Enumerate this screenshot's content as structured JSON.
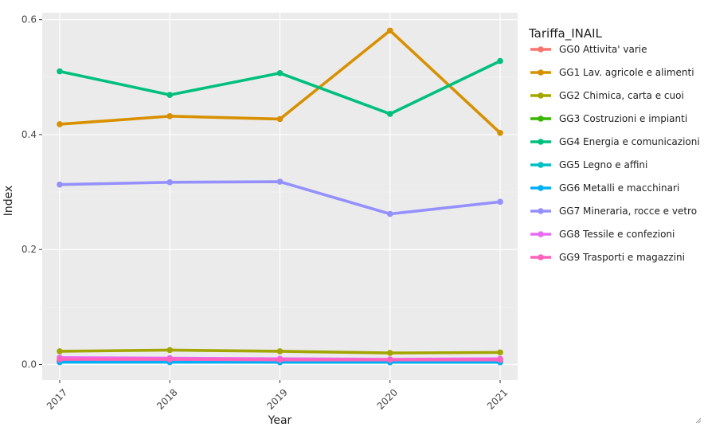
{
  "chart_data": {
    "type": "line",
    "title": "",
    "xlabel": "Year",
    "ylabel": "Index",
    "categories": [
      "2017",
      "2018",
      "2019",
      "2020",
      "2021"
    ],
    "yticks": [
      0.0,
      0.2,
      0.4,
      0.6
    ],
    "ytick_labels": [
      "0.0",
      "0.2",
      "0.4",
      "0.6"
    ],
    "ylim": [
      -0.027,
      0.612
    ],
    "grid": true,
    "legend_title": "Tariffa_INAIL",
    "legend_position": "right",
    "series": [
      {
        "name": "GG0 Attivita' varie",
        "color": "#F8766D",
        "values": [
          0.006,
          0.006,
          0.005,
          0.005,
          0.005
        ]
      },
      {
        "name": "GG1 Lav. agricole e alimenti",
        "color": "#D89000",
        "values": [
          0.418,
          0.432,
          0.427,
          0.581,
          0.403
        ]
      },
      {
        "name": "GG2 Chimica, carta e cuoi",
        "color": "#A3A500",
        "values": [
          0.023,
          0.025,
          0.023,
          0.02,
          0.021
        ]
      },
      {
        "name": "GG3 Costruzioni e impianti",
        "color": "#39B600",
        "values": [
          0.007,
          0.007,
          0.006,
          0.006,
          0.006
        ]
      },
      {
        "name": "GG4 Energia e comunicazioni",
        "color": "#00BF7D",
        "values": [
          0.51,
          0.469,
          0.507,
          0.436,
          0.528
        ]
      },
      {
        "name": "GG5 Legno e affini",
        "color": "#00BFC4",
        "values": [
          0.005,
          0.005,
          0.004,
          0.004,
          0.004
        ]
      },
      {
        "name": "GG6 Metalli e macchinari",
        "color": "#00B0F6",
        "values": [
          0.004,
          0.004,
          0.004,
          0.004,
          0.004
        ]
      },
      {
        "name": "GG7 Mineraria, rocce e vetro",
        "color": "#9590FF",
        "values": [
          0.313,
          0.317,
          0.318,
          0.262,
          0.283
        ]
      },
      {
        "name": "GG8 Tessile e confezioni",
        "color": "#E76BF3",
        "values": [
          0.012,
          0.011,
          0.01,
          0.009,
          0.01
        ]
      },
      {
        "name": "GG9 Trasporti e magazzini",
        "color": "#FF62BC",
        "values": [
          0.009,
          0.009,
          0.008,
          0.008,
          0.008
        ]
      }
    ]
  }
}
